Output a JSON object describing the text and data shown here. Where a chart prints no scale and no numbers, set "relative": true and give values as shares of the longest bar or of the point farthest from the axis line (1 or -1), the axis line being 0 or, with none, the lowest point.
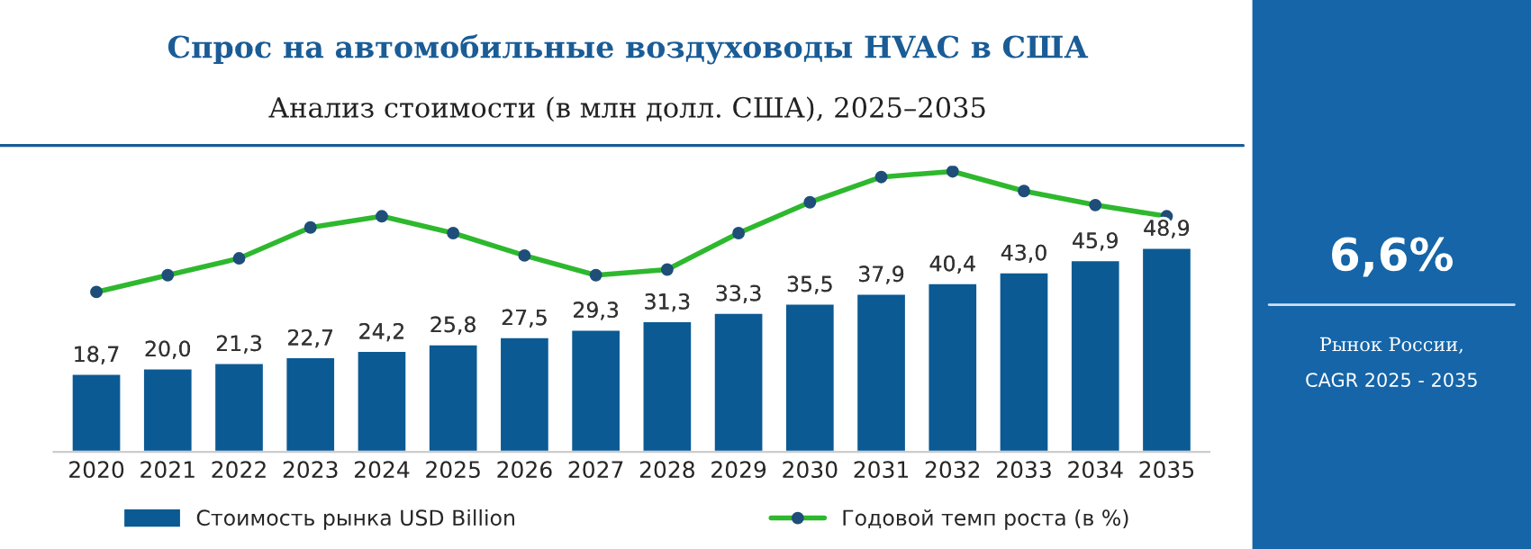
{
  "chart_data": [
    {
      "type": "bar",
      "title": "Спрос на автомобильные воздуховоды HVAC в США",
      "subtitle": "Анализ стоимости (в млн долл. США), 2025–2035",
      "categories": [
        "2020",
        "2021",
        "2022",
        "2023",
        "2024",
        "2025",
        "2026",
        "2027",
        "2028",
        "2029",
        "2030",
        "2031",
        "2032",
        "2033",
        "2034",
        "2035"
      ],
      "legend": "bottom",
      "series": [
        {
          "name": "Стоимость рынка USD Billion",
          "color": "#0b5a94",
          "values": [
            18.7,
            20.0,
            21.3,
            22.7,
            24.2,
            25.8,
            27.5,
            29.3,
            31.3,
            33.3,
            35.5,
            37.9,
            40.4,
            43.0,
            45.9,
            48.9
          ],
          "value_labels": [
            "18,7",
            "20,0",
            "21,3",
            "22,7",
            "24,2",
            "25,8",
            "27,5",
            "29,3",
            "31,3",
            "33,3",
            "35,5",
            "37,9",
            "40,4",
            "43,0",
            "45,9",
            "48,9"
          ]
        }
      ]
    },
    {
      "type": "line",
      "relative": true,
      "legend": "bottom",
      "marker": "circle",
      "categories": [
        null,
        null,
        null,
        null,
        null,
        null,
        null,
        null,
        null,
        null,
        null,
        null,
        null,
        null,
        null,
        null
      ],
      "series": [
        {
          "name": "Годовой темп роста (в %)",
          "color": "#2eb82e",
          "values": [
            0.57,
            0.63,
            0.69,
            0.8,
            0.84,
            0.78,
            0.7,
            0.63,
            0.65,
            0.78,
            0.89,
            0.98,
            1,
            0.93,
            0.88,
            0.84
          ]
        }
      ]
    },
    {
      "type": "other",
      "title": "6,6%",
      "annotations": [
        "Рынок России,",
        "CAGR 2025 - 2035"
      ]
    }
  ]
}
